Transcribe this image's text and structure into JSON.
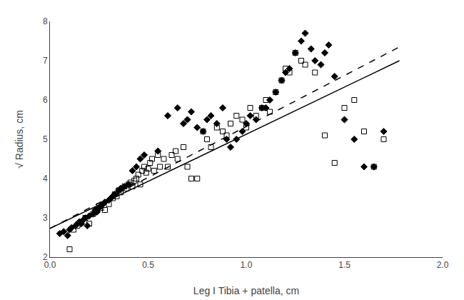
{
  "chart_data": {
    "type": "scatter",
    "xlabel": "Leg I Tibia + patella, cm",
    "ylabel": "√ Radius, cm",
    "xlim": [
      0.0,
      2.0
    ],
    "ylim": [
      2.0,
      8.0
    ],
    "xticks": [
      {
        "value": 0.0,
        "label": "0.0"
      },
      0.5,
      {
        "value": 1.0,
        "label": "1.0"
      },
      1.5,
      {
        "value": 2.0,
        "label": "2.0"
      }
    ],
    "yticks": [
      2,
      3,
      4,
      5,
      6,
      7,
      8
    ],
    "grid": false,
    "series": [
      {
        "type": "scatter",
        "marker": "square-open",
        "color": "#000000",
        "x": [
          0.1,
          0.12,
          0.14,
          0.16,
          0.18,
          0.2,
          0.22,
          0.24,
          0.25,
          0.26,
          0.28,
          0.3,
          0.32,
          0.33,
          0.34,
          0.35,
          0.36,
          0.38,
          0.39,
          0.4,
          0.41,
          0.42,
          0.43,
          0.44,
          0.45,
          0.46,
          0.47,
          0.48,
          0.49,
          0.5,
          0.51,
          0.52,
          0.53,
          0.55,
          0.56,
          0.58,
          0.6,
          0.62,
          0.64,
          0.65,
          0.68,
          0.7,
          0.72,
          0.75,
          0.78,
          0.8,
          0.82,
          0.85,
          0.88,
          0.9,
          0.92,
          0.95,
          0.98,
          1.0,
          1.02,
          1.05,
          1.08,
          1.1,
          1.12,
          1.15,
          1.18,
          1.2,
          1.22,
          1.25,
          1.28,
          1.3,
          1.35,
          1.4,
          1.45,
          1.5,
          1.55,
          1.6,
          1.65,
          1.7
        ],
        "values": [
          2.2,
          2.7,
          2.8,
          2.9,
          3.0,
          2.85,
          3.1,
          3.2,
          3.3,
          3.25,
          3.2,
          3.35,
          3.5,
          3.6,
          3.55,
          3.7,
          3.65,
          3.8,
          3.75,
          3.85,
          3.9,
          3.8,
          3.95,
          4.0,
          4.1,
          3.85,
          4.2,
          4.3,
          4.15,
          4.25,
          4.4,
          4.5,
          4.2,
          4.6,
          4.3,
          4.5,
          4.3,
          4.6,
          4.7,
          4.5,
          4.8,
          4.3,
          4.0,
          4.0,
          5.2,
          5.0,
          4.8,
          5.3,
          5.2,
          5.1,
          5.4,
          5.6,
          5.5,
          5.3,
          5.8,
          5.6,
          5.8,
          6.0,
          5.7,
          6.2,
          6.5,
          6.8,
          6.7,
          7.2,
          7.0,
          6.9,
          6.7,
          5.1,
          4.4,
          5.8,
          6.0,
          5.2,
          4.3,
          5.0
        ]
      },
      {
        "type": "scatter",
        "marker": "diamond",
        "color": "#000000",
        "x": [
          0.05,
          0.07,
          0.09,
          0.1,
          0.11,
          0.13,
          0.14,
          0.15,
          0.16,
          0.17,
          0.18,
          0.19,
          0.2,
          0.22,
          0.23,
          0.24,
          0.25,
          0.26,
          0.27,
          0.28,
          0.3,
          0.31,
          0.32,
          0.33,
          0.35,
          0.36,
          0.38,
          0.4,
          0.42,
          0.44,
          0.46,
          0.48,
          0.55,
          0.6,
          0.65,
          0.68,
          0.7,
          0.72,
          0.75,
          0.78,
          0.8,
          0.82,
          0.85,
          0.88,
          0.9,
          0.92,
          0.95,
          0.98,
          1.0,
          1.02,
          1.05,
          1.08,
          1.1,
          1.12,
          1.15,
          1.18,
          1.2,
          1.22,
          1.25,
          1.28,
          1.3,
          1.33,
          1.35,
          1.38,
          1.4,
          1.42,
          1.45,
          1.5,
          1.55,
          1.6,
          1.65,
          1.7
        ],
        "values": [
          2.6,
          2.65,
          2.55,
          2.7,
          2.75,
          2.8,
          2.85,
          2.9,
          2.85,
          2.95,
          3.0,
          2.8,
          3.05,
          3.1,
          3.2,
          3.15,
          3.25,
          3.3,
          3.35,
          3.4,
          3.45,
          3.5,
          3.55,
          3.6,
          3.7,
          3.75,
          3.8,
          3.85,
          4.2,
          4.3,
          4.5,
          4.6,
          4.7,
          5.6,
          5.8,
          5.4,
          5.5,
          5.7,
          5.3,
          5.2,
          5.5,
          5.6,
          5.4,
          5.8,
          5.0,
          4.8,
          5.0,
          5.2,
          5.4,
          5.6,
          5.5,
          5.8,
          5.8,
          6.0,
          6.2,
          6.5,
          6.7,
          6.8,
          7.2,
          7.5,
          7.7,
          7.3,
          7.0,
          6.9,
          7.2,
          7.4,
          6.6,
          5.5,
          5.0,
          4.3,
          4.3,
          5.2
        ]
      },
      {
        "type": "line",
        "line_style": "dashed",
        "color": "#000000",
        "x": [
          0.0,
          1.78
        ],
        "values": [
          2.73,
          7.35
        ]
      },
      {
        "type": "line",
        "line_style": "solid",
        "color": "#000000",
        "x": [
          0.0,
          1.78
        ],
        "values": [
          2.73,
          7.0
        ]
      }
    ]
  }
}
